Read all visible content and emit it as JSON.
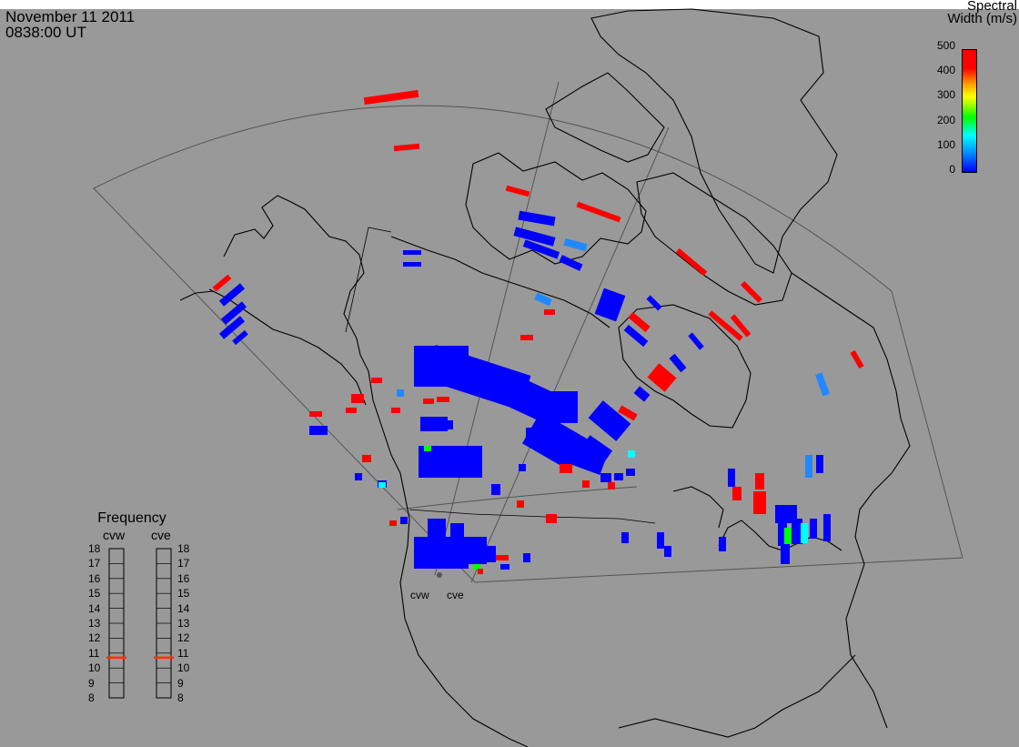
{
  "header": {
    "date": "November  11 2011",
    "time": "0838:00 UT"
  },
  "scale": {
    "title_line1": "Spectral",
    "title_line2": "Width (m/s)",
    "ticks": [
      "500",
      "400",
      "300",
      "200",
      "100",
      "0"
    ]
  },
  "frequency": {
    "title": "Frequency",
    "radars": [
      "cvw",
      "cve"
    ],
    "ticks": [
      "18",
      "17",
      "16",
      "15",
      "14",
      "13",
      "12",
      "11",
      "10",
      "9",
      "8"
    ],
    "cvw_mhz": 10.7,
    "cve_mhz": 10.7,
    "marker_color": "#ff3300"
  },
  "stations": [
    "cvw",
    "cve"
  ],
  "colors": {
    "background": "#999999",
    "coast": "#000000",
    "fov": "#444444",
    "low": "#0000ff",
    "high": "#ff0000",
    "cyan": "#00ffff",
    "green": "#00ff00",
    "mid_blue": "#2288ff"
  }
}
